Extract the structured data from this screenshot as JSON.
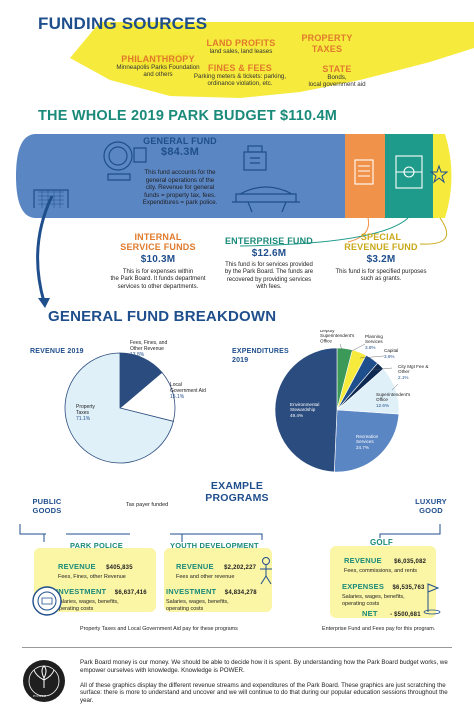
{
  "funding": {
    "title": "FUNDING SOURCES",
    "philanthropy": {
      "label": "PHILANTHROPY",
      "desc1": "Minneapolis Parks Foundation",
      "desc2": "and others"
    },
    "land_profits": {
      "label": "LAND PROFITS",
      "desc": "land sales, land leases"
    },
    "property_taxes": {
      "label1": "PROPERTY",
      "label2": "TAXES"
    },
    "fines_fees": {
      "label": "FINES & FEES",
      "desc1": "Parking meters & tickets: parking,",
      "desc2": "ordinance violation, etc."
    },
    "state": {
      "label": "STATE",
      "desc1": "Bonds,",
      "desc2": "local government aid"
    }
  },
  "budget": {
    "title": "THE WHOLE 2019 PARK BUDGET $110.4M",
    "general": {
      "label": "GENERAL FUND",
      "amount": "$84.3M",
      "desc": [
        "This fund accounts for the",
        "general operations of the",
        "city. Revenue for general",
        "funds = property tax, fees.",
        "Expenditures = park police."
      ]
    },
    "internal": {
      "label1": "INTERNAL",
      "label2": "SERVICE FUNDS",
      "amount": "$10.3M",
      "desc": [
        "This is for expenses within",
        "the Park Board. It funds department",
        "services to other departments."
      ]
    },
    "enterprise": {
      "label": "ENTERPRISE FUND",
      "amount": "$12.6M",
      "desc": [
        "This fund is for services provided",
        "by the Park Board. The funds are",
        "recovered by providing services",
        "with fees."
      ]
    },
    "special": {
      "label1": "SPECIAL",
      "label2": "REVENUE FUND",
      "amount": "$3.2M",
      "desc": [
        "This fund is for specified purposes",
        "such as grants."
      ]
    }
  },
  "breakdown": {
    "title": "GENERAL FUND BREAKDOWN"
  },
  "chart_data": [
    {
      "type": "pie",
      "title": "REVENUE 2019",
      "slices": [
        {
          "label": "Property Taxes",
          "value": 71.1,
          "display": "71.1%"
        },
        {
          "label": "Fees, Fines, and Other Revenue",
          "value": 13.8,
          "display": "13.8%"
        },
        {
          "label": "Local Government Aid",
          "value": 15.1,
          "display": "15.1%"
        }
      ]
    },
    {
      "type": "pie",
      "title": "EXPENDITURES 2019",
      "slices": [
        {
          "label": "Environmental Stewardship",
          "value": 49.4,
          "display": "49.4%"
        },
        {
          "label": "Deputy Superintendent's Office",
          "value": 4.0,
          "display": "4.0%"
        },
        {
          "label": "Planning Services",
          "value": 3.8,
          "display": "3.8%"
        },
        {
          "label": "Capital",
          "value": 3.6,
          "display": "3.6%"
        },
        {
          "label": "City Mgt Fee & Other",
          "value": 2.1,
          "display": "2.1%"
        },
        {
          "label": "Superintendent's Office",
          "value": 12.6,
          "display": "12.6%"
        },
        {
          "label": "Recreation Services",
          "value": 24.7,
          "display": "24.7%"
        }
      ]
    }
  ],
  "colors": {
    "navy": "#1f4e8c",
    "darknavy": "#2b4c7e",
    "lightblue": "#dff0f8",
    "teal": "#1a8a7a",
    "yellow": "#f6ea3c",
    "orange": "#f0924a",
    "green": "#3c9a58"
  },
  "examples": {
    "title1": "EXAMPLE",
    "title2": "PROGRAMS",
    "public_goods1": "PUBLIC",
    "public_goods2": "GOODS",
    "luxury1": "LUXURY",
    "luxury2": "GOOD",
    "tax_funded": "Tax  payer funded",
    "park_police": {
      "title": "PARK POLICE",
      "revenue_label": "REVENUE",
      "revenue": "$405,835",
      "revenue_desc": "Fees, Fines, other Revenue",
      "investment_label": "INVESTMENT",
      "investment": "$6,637,416",
      "investment_desc1": "Salaries, wages, benefits,",
      "investment_desc2": "operating costs"
    },
    "youth": {
      "title": "YOUTH DEVELOPMENT",
      "revenue_label": "REVENUE",
      "revenue": "$2,202,227",
      "revenue_desc": "Fees and other revenue",
      "investment_label": "INVESTMENT",
      "investment": "$4,834,278",
      "investment_desc1": "Salaries, wages, benefits,",
      "investment_desc2": "operating costs"
    },
    "golf": {
      "title": "GOLF",
      "revenue_label": "REVENUE",
      "revenue": "$6,035,082",
      "revenue_desc": "Fees, commissions, and rents",
      "expenses_label": "EXPENSES",
      "expenses": "$6,535,763",
      "expenses_desc1": "Salaries, wages, benefits,",
      "expenses_desc2": "operating costs",
      "net_label": "NET",
      "net": "- $500,681"
    },
    "footnote_left": "Property Taxes and Local Government Aid pay for these programs",
    "footnote_right": "Enterprise Fund and Fees pay for this program."
  },
  "footer": {
    "logo_top": "PARKS",
    "logo_bottom": "POWER",
    "p1": "Park Board money is our money. We should be able to decide how it is spent. By understanding how the Park Board budget works, we empower ourselves with knowledge. Knowledge is POWER.",
    "p2": "All of these graphics display the different revenue streams and expenditures of the Park Board. These graphics are just scratching the surface: there is more to understand and uncover and we will continue to do that during our popular education sessions throughout the year."
  }
}
